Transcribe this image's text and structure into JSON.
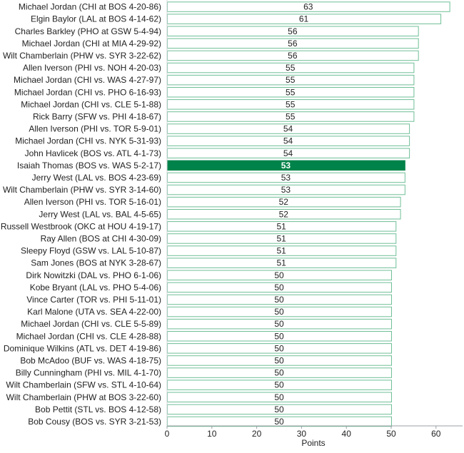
{
  "chart_data": {
    "type": "bar",
    "orientation": "horizontal",
    "categories": [
      "Michael Jordan (CHI at BOS 4-20-86)",
      "Elgin Baylor (LAL at BOS 4-14-62)",
      "Charles Barkley (PHO at GSW 5-4-94)",
      "Michael Jordan (CHI at MIA 4-29-92)",
      "Wilt Chamberlain (PHW vs. SYR 3-22-62)",
      "Allen Iverson (PHI vs. NOH 4-20-03)",
      "Michael Jordan (CHI vs. WAS 4-27-97)",
      "Michael Jordan (CHI vs. PHO 6-16-93)",
      "Michael Jordan (CHI vs. CLE 5-1-88)",
      "Rick Barry (SFW vs. PHI 4-18-67)",
      "Allen Iverson (PHI vs. TOR 5-9-01)",
      "Michael Jordan (CHI vs. NYK 5-31-93)",
      "John Havlicek (BOS vs. ATL 4-1-73)",
      "Isaiah Thomas (BOS vs. WAS 5-2-17)",
      "Jerry West (LAL vs. BOS 4-23-69)",
      "Wilt Chamberlain (PHW vs. SYR 3-14-60)",
      "Allen Iverson (PHI vs. TOR 5-16-01)",
      "Jerry West (LAL vs. BAL 4-5-65)",
      "Russell Westbrook (OKC at HOU 4-19-17)",
      "Ray Allen (BOS at CHI 4-30-09)",
      "Sleepy Floyd (GSW vs. LAL 5-10-87)",
      "Sam Jones (BOS at NYK 3-28-67)",
      "Dirk Nowitzki (DAL vs. PHO 6-1-06)",
      "Kobe Bryant (LAL vs. PHO 5-4-06)",
      "Vince Carter (TOR vs. PHI 5-11-01)",
      "Karl Malone (UTA vs. SEA 4-22-00)",
      "Michael Jordan (CHI vs. CLE 5-5-89)",
      "Michael Jordan (CHI vs. CLE 4-28-88)",
      "Dominique Wilkins (ATL vs. DET 4-19-86)",
      "Bob McAdoo (BUF vs. WAS 4-18-75)",
      "Billy Cunningham (PHI vs. MIL 4-1-70)",
      "Wilt Chamberlain (SFW vs. STL 4-10-64)",
      "Wilt Chamberlain (PHW at BOS 3-22-60)",
      "Bob Pettit (STL vs. BOS 4-12-58)",
      "Bob Cousy (BOS vs. SYR 3-21-53)"
    ],
    "values": [
      63,
      61,
      56,
      56,
      56,
      55,
      55,
      55,
      55,
      55,
      54,
      54,
      54,
      53,
      53,
      53,
      52,
      52,
      51,
      51,
      51,
      51,
      50,
      50,
      50,
      50,
      50,
      50,
      50,
      50,
      50,
      50,
      50,
      50,
      50
    ],
    "highlight_index": 13,
    "xlabel": "Points",
    "xlim": [
      0,
      65
    ],
    "xticks": [
      0,
      10,
      20,
      30,
      40,
      50,
      60
    ],
    "grid": false,
    "legend": "none",
    "colors": {
      "bar_fill": "#ffffff",
      "bar_stroke": "#6fbf97",
      "highlight_fill": "#00834a",
      "highlight_text": "#ffffff",
      "text": "#222222",
      "axis": "#9aa0a6"
    }
  }
}
